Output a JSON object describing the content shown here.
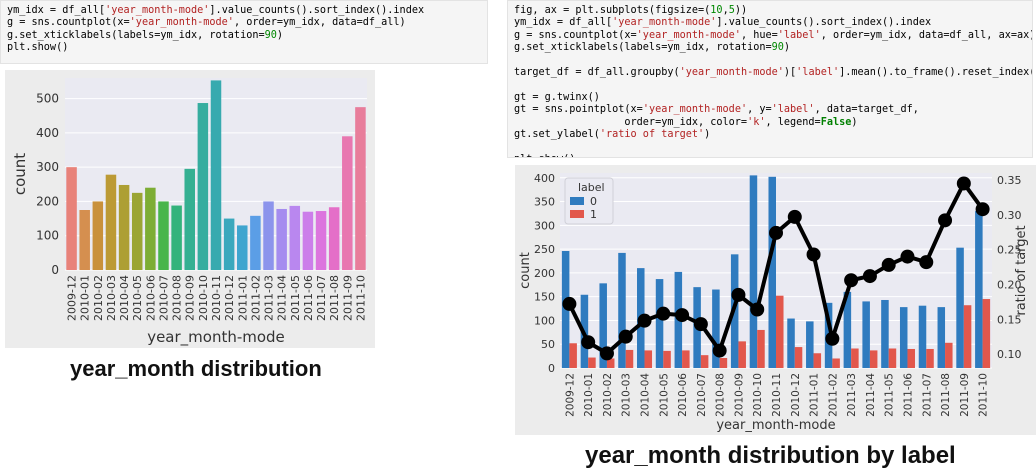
{
  "code_left": {
    "lines": [
      [
        {
          "t": "ym_idx = df_all["
        },
        {
          "t": "'year_month-mode'",
          "c": "s"
        },
        {
          "t": "].value_counts().sort_index().index"
        }
      ],
      [
        {
          "t": "g = sns.countplot(x="
        },
        {
          "t": "'year_month-mode'",
          "c": "s"
        },
        {
          "t": ", order=ym_idx, data=df_all)"
        }
      ],
      [
        {
          "t": "g.set_xticklabels(labels=ym_idx, rotation="
        },
        {
          "t": "90",
          "c": "n"
        },
        {
          "t": ")"
        }
      ],
      [
        {
          "t": "plt.show()"
        }
      ]
    ]
  },
  "code_right": {
    "lines": [
      [
        {
          "t": "fig, ax = plt.subplots(figsize=("
        },
        {
          "t": "10",
          "c": "n"
        },
        {
          "t": ","
        },
        {
          "t": "5",
          "c": "n"
        },
        {
          "t": "))"
        }
      ],
      [
        {
          "t": "ym_idx = df_all["
        },
        {
          "t": "'year_month-mode'",
          "c": "s"
        },
        {
          "t": "].value_counts().sort_index().index"
        }
      ],
      [
        {
          "t": "g = sns.countplot(x="
        },
        {
          "t": "'year_month-mode'",
          "c": "s"
        },
        {
          "t": ", hue="
        },
        {
          "t": "'label'",
          "c": "s"
        },
        {
          "t": ", order=ym_idx, data=df_all, ax=ax)"
        }
      ],
      [
        {
          "t": "g.set_xticklabels(labels=ym_idx, rotation="
        },
        {
          "t": "90",
          "c": "n"
        },
        {
          "t": ")"
        }
      ],
      [
        {
          "t": ""
        }
      ],
      [
        {
          "t": "target_df = df_all.groupby("
        },
        {
          "t": "'year_month-mode'",
          "c": "s"
        },
        {
          "t": ")["
        },
        {
          "t": "'label'",
          "c": "s"
        },
        {
          "t": "].mean().to_frame().reset_index()"
        }
      ],
      [
        {
          "t": ""
        }
      ],
      [
        {
          "t": "gt = g.twinx()"
        }
      ],
      [
        {
          "t": "gt = sns.pointplot(x="
        },
        {
          "t": "'year_month-mode'",
          "c": "s"
        },
        {
          "t": ", y="
        },
        {
          "t": "'label'",
          "c": "s"
        },
        {
          "t": ", data=target_df,"
        }
      ],
      [
        {
          "t": "                  order=ym_idx, color="
        },
        {
          "t": "'k'",
          "c": "s"
        },
        {
          "t": ", legend="
        },
        {
          "t": "False",
          "c": "k"
        },
        {
          "t": ")"
        }
      ],
      [
        {
          "t": "gt.set_ylabel("
        },
        {
          "t": "'ratio of target'",
          "c": "s"
        },
        {
          "t": ")"
        }
      ],
      [
        {
          "t": ""
        }
      ],
      [
        {
          "t": "plt.show()"
        }
      ]
    ]
  },
  "captions": {
    "left": "year_month distribution",
    "right": "year_month distribution by label"
  },
  "chart_data": [
    {
      "type": "bar",
      "xlabel": "year_month-mode",
      "ylabel": "count",
      "ylim": [
        0,
        560
      ],
      "yticks": [
        0,
        100,
        200,
        300,
        400,
        500
      ],
      "grid": true,
      "categories": [
        "2009-12",
        "2010-01",
        "2010-02",
        "2010-03",
        "2010-04",
        "2010-05",
        "2010-06",
        "2010-07",
        "2010-08",
        "2010-09",
        "2010-10",
        "2010-11",
        "2010-12",
        "2011-01",
        "2011-02",
        "2011-03",
        "2011-04",
        "2011-05",
        "2011-06",
        "2011-07",
        "2011-08",
        "2011-09",
        "2011-10"
      ],
      "values": [
        300,
        175,
        200,
        278,
        248,
        225,
        240,
        200,
        188,
        295,
        487,
        553,
        150,
        130,
        158,
        200,
        178,
        187,
        170,
        172,
        183,
        390,
        475
      ],
      "colors": [
        "#e8827a",
        "#d58f4f",
        "#c9913b",
        "#bc9a35",
        "#ad9f34",
        "#9ba533",
        "#7dad35",
        "#48b54b",
        "#34b37c",
        "#35b092",
        "#36ad9f",
        "#37aaaf",
        "#3ba8bd",
        "#3fa5cf",
        "#5b9ee6",
        "#8c94ec",
        "#a58cef",
        "#b987ef",
        "#cc7eea",
        "#dc75de",
        "#e46fc8",
        "#e877b0",
        "#e87d9b"
      ]
    },
    {
      "type": "bar",
      "xlabel": "year_month-mode",
      "ylabel": "count",
      "ylabel2": "ratio of target",
      "ylim": [
        0,
        410
      ],
      "yticks": [
        0,
        50,
        100,
        150,
        200,
        250,
        300,
        350,
        400
      ],
      "ylim2": [
        0.08,
        0.36
      ],
      "yticks2": [
        0.1,
        0.15,
        0.2,
        0.25,
        0.3,
        0.35
      ],
      "grid": true,
      "legend": {
        "title": "label",
        "placement": "top-left"
      },
      "categories": [
        "2009-12",
        "2010-01",
        "2010-02",
        "2010-03",
        "2010-04",
        "2010-05",
        "2010-06",
        "2010-07",
        "2010-08",
        "2010-09",
        "2010-10",
        "2010-11",
        "2010-12",
        "2011-01",
        "2011-02",
        "2011-03",
        "2011-04",
        "2011-05",
        "2011-06",
        "2011-07",
        "2011-08",
        "2011-09",
        "2011-10"
      ],
      "series": [
        {
          "name": "0",
          "color": "#2f7bbf",
          "values": [
            246,
            154,
            178,
            242,
            210,
            187,
            202,
            170,
            165,
            239,
            405,
            402,
            104,
            98,
            137,
            160,
            140,
            143,
            128,
            131,
            128,
            253,
            330
          ]
        },
        {
          "name": "1",
          "color": "#e2574c",
          "values": [
            52,
            22,
            20,
            38,
            37,
            36,
            37,
            27,
            21,
            56,
            80,
            152,
            44,
            31,
            20,
            41,
            37,
            41,
            40,
            40,
            53,
            132,
            145
          ]
        }
      ],
      "line": {
        "name": "ratio of target",
        "color": "#000000",
        "values": [
          0.172,
          0.117,
          0.101,
          0.125,
          0.148,
          0.158,
          0.156,
          0.143,
          0.105,
          0.185,
          0.164,
          0.274,
          0.297,
          0.243,
          0.122,
          0.206,
          0.212,
          0.228,
          0.24,
          0.232,
          0.292,
          0.345,
          0.308
        ]
      }
    }
  ]
}
